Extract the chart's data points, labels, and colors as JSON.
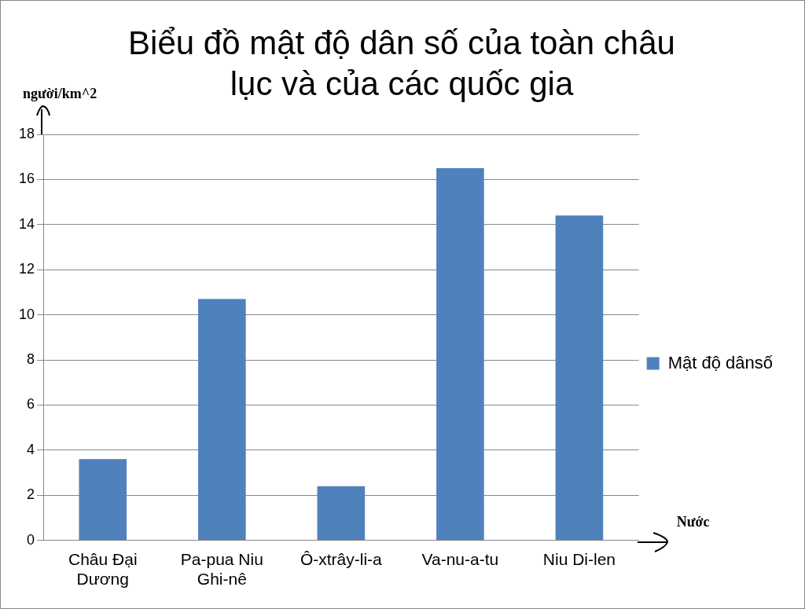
{
  "chart_data": {
    "type": "bar",
    "title": "Biểu đồ mật độ dân số của toàn châu lục và của các quốc gia",
    "xlabel": "Nước",
    "ylabel": "người/km^2",
    "categories": [
      "Châu Đại Dương",
      "Pa-pua Niu Ghi-nê",
      "Ô-xtrây-li-a",
      "Va-nu-a-tu",
      "Niu Di-len"
    ],
    "series": [
      {
        "name": "Mật độ dânsố",
        "color": "#4f81bd",
        "values": [
          3.6,
          10.7,
          2.4,
          16.5,
          14.4
        ]
      }
    ],
    "ylim": [
      0,
      18
    ],
    "yticks": [
      0,
      2,
      4,
      6,
      8,
      10,
      12,
      14,
      16,
      18
    ],
    "grid": "y",
    "legend": "right"
  }
}
